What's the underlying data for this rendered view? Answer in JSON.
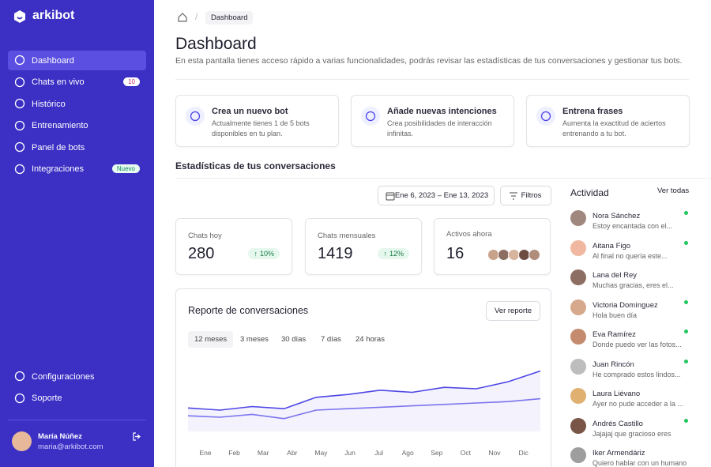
{
  "sidebar": {
    "brand": "arkibot",
    "nav": [
      {
        "label": "Dashboard",
        "active": true
      },
      {
        "label": "Chats en vivo",
        "badge": 10
      },
      {
        "label": "Histórico"
      },
      {
        "label": "Entrenamiento"
      },
      {
        "label": "Panel de bots"
      },
      {
        "label": "Integraciones",
        "tag": "Nuevo"
      }
    ],
    "bottom_nav": [
      {
        "label": "Configuraciones"
      },
      {
        "label": "Soporte"
      }
    ],
    "user": {
      "name": "María Núñez",
      "email": "maria@arkibot.com"
    }
  },
  "breadcrumb": "Dashboard",
  "header": {
    "title": "Dashboard",
    "subtitle": "En esta pantalla tienes acceso rápido a varias funcionalidades, podrás revisar las estadísticas de tus conversaciones y gestionar tus bots."
  },
  "cards": [
    {
      "title": "Crea un nuevo bot",
      "text": "Actualmente tienes 1 de 5 bots disponibles en tu plan."
    },
    {
      "title": "Añade nuevas intenciones",
      "text": "Crea posibilidades de interacción infinitas."
    },
    {
      "title": "Entrena frases",
      "text": "Aumenta la exactitud de aciertos entrenando a tu bot."
    }
  ],
  "stats_title": "Estadísticas de tus conversaciones",
  "date_range": "Ene 6, 2023 – Ene 13, 2023",
  "filters": "Filtros",
  "stats": [
    {
      "label": "Chats hoy",
      "value": 280,
      "change": "10%"
    },
    {
      "label": "Chats mensuales",
      "value": 1419,
      "change": "12%"
    },
    {
      "label": "Activos ahora",
      "value": 16
    }
  ],
  "report": {
    "title": "Reporte de conversaciones",
    "button": "Ver reporte",
    "tabs": [
      "12 meses",
      "3 meses",
      "30 días",
      "7 días",
      "24 horas"
    ],
    "active_tab": 0
  },
  "chart_data": {
    "type": "line",
    "categories": [
      "Ene",
      "Feb",
      "Mar",
      "Abr",
      "May",
      "Jun",
      "Jul",
      "Ago",
      "Sep",
      "Oct",
      "Nov",
      "Dic"
    ],
    "series": [
      {
        "color": "#4f46e5",
        "values": [
          33,
          30,
          35,
          32,
          48,
          52,
          58,
          55,
          62,
          60,
          70,
          85
        ]
      },
      {
        "color": "#7c74ee",
        "values": [
          22,
          20,
          24,
          18,
          30,
          32,
          34,
          36,
          38,
          40,
          42,
          46
        ]
      }
    ],
    "ylim": [
      0,
      100
    ]
  },
  "activity": {
    "title": "Actividad",
    "link": "Ver todas",
    "items": [
      {
        "name": "Nora Sánchez",
        "message": "Estoy encantada con el...",
        "online": true
      },
      {
        "name": "Aitana Figo",
        "message": "Al final no quería este...",
        "online": true
      },
      {
        "name": "Lana del Rey",
        "message": "Muchas gracias, eres el...",
        "online": false
      },
      {
        "name": "Victoria Domínguez",
        "message": "Hola buen día",
        "online": true
      },
      {
        "name": "Eva Ramírez",
        "message": "Donde puedo ver las fotos...",
        "online": true
      },
      {
        "name": "Juan Rincón",
        "message": "He comprado estos lindos...",
        "online": true
      },
      {
        "name": "Laura Liévano",
        "message": "Ayer no pude acceder a la ...",
        "online": false
      },
      {
        "name": "Andrés Castillo",
        "message": "Jajajaj que gracioso eres",
        "online": true
      },
      {
        "name": "Iker Armendáriz",
        "message": "Quiero hablar con un humano",
        "online": false
      }
    ]
  }
}
